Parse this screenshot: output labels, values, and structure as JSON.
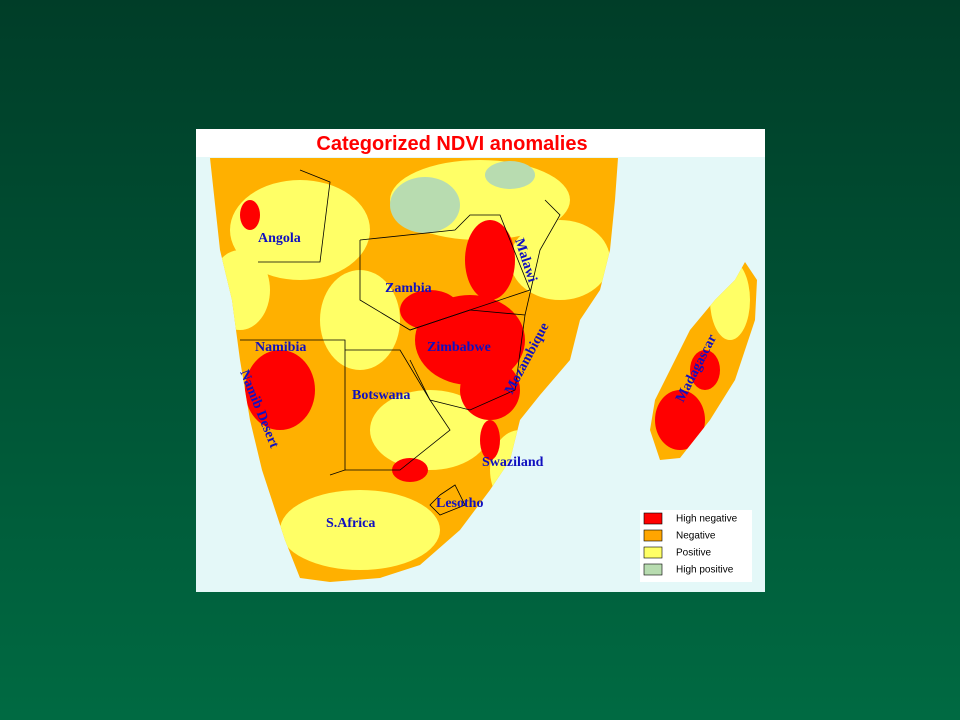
{
  "title": "Categorized NDVI anomalies",
  "labels": [
    "Angola",
    "Zambia",
    "Malawi",
    "Namibia",
    "Zimbabwe",
    "Mozambique",
    "Botswana",
    "Namib Desert",
    "Swaziland",
    "Lesotho",
    "S.Africa",
    "Madagascar"
  ],
  "legend": [
    {
      "label": "High negative",
      "color": "#ff0000"
    },
    {
      "label": "Negative",
      "color": "#ffa500"
    },
    {
      "label": "Positive",
      "color": "#ffff66"
    },
    {
      "label": "High positive",
      "color": "#b8dcb0"
    }
  ]
}
